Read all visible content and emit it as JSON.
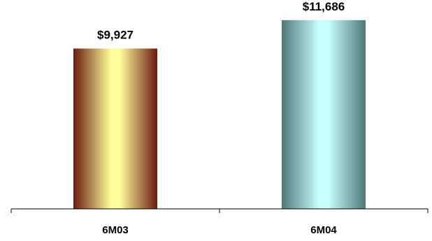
{
  "chart_data": {
    "type": "bar",
    "title": "",
    "xlabel": "",
    "ylabel": "",
    "categories": [
      "6M03",
      "6M04"
    ],
    "values": [
      9927,
      11686
    ],
    "value_labels": [
      "$9,927",
      "$11,686"
    ],
    "ylim": [
      0,
      12500
    ],
    "grid": false,
    "legend": "none",
    "bar_colors": [
      {
        "edge": "#6b1a0f",
        "mid": "#ffff9c"
      },
      {
        "edge": "#4f7878",
        "mid": "#c8ffff"
      }
    ],
    "axis_color": "#000000"
  }
}
